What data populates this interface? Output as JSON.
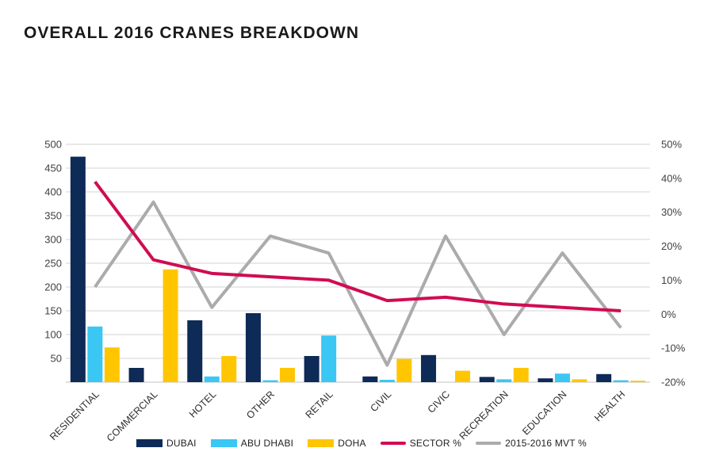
{
  "chart_data": {
    "type": "combo-bar-line",
    "title": "OVERALL 2016 CRANES BREAKDOWN",
    "xlabel": "",
    "ylabel": "",
    "grid": true,
    "legend_position": "bottom",
    "categories": [
      "RESIDENTIAL",
      "COMMERCIAL",
      "HOTEL",
      "OTHER",
      "RETAIL",
      "CIVIL",
      "CIVIC",
      "RECREATION",
      "EDUCATION",
      "HEALTH"
    ],
    "series": [
      {
        "name": "DUBAI",
        "type": "bar",
        "axis": "left",
        "color": "#0e2a56",
        "values": [
          474,
          30,
          130,
          145,
          55,
          12,
          57,
          11,
          8,
          17
        ]
      },
      {
        "name": "ABU DHABI",
        "type": "bar",
        "axis": "left",
        "color": "#3bc7f4",
        "values": [
          117,
          0,
          12,
          4,
          98,
          5,
          0,
          6,
          18,
          4
        ]
      },
      {
        "name": "DOHA",
        "type": "bar",
        "axis": "left",
        "color": "#ffc600",
        "values": [
          73,
          237,
          55,
          30,
          0,
          49,
          24,
          30,
          6,
          3
        ]
      },
      {
        "name": "SECTOR %",
        "type": "line",
        "axis": "right",
        "color": "#d00c52",
        "values": [
          39,
          16,
          12,
          11,
          10,
          4,
          5,
          3,
          2,
          1
        ]
      },
      {
        "name": "2015-2016 MVT %",
        "type": "line",
        "axis": "right",
        "color": "#ababab",
        "values": [
          8,
          33,
          2,
          23,
          18,
          -15,
          23,
          -6,
          18,
          -4
        ]
      }
    ],
    "left_axis": {
      "min": 0,
      "max": 500,
      "ticks": [
        500,
        450,
        400,
        350,
        300,
        250,
        200,
        150,
        100,
        50
      ]
    },
    "right_axis": {
      "min": -20,
      "max": 50,
      "ticks": [
        50,
        40,
        30,
        20,
        10,
        0,
        -10,
        -20
      ],
      "format": "percent"
    },
    "colors": {
      "grid": "#dcdcdc",
      "baseline": "#cfcfcf",
      "axis_text": "#404040",
      "category_text": "#2e2e2e",
      "title_text": "#1a1a1a"
    }
  }
}
